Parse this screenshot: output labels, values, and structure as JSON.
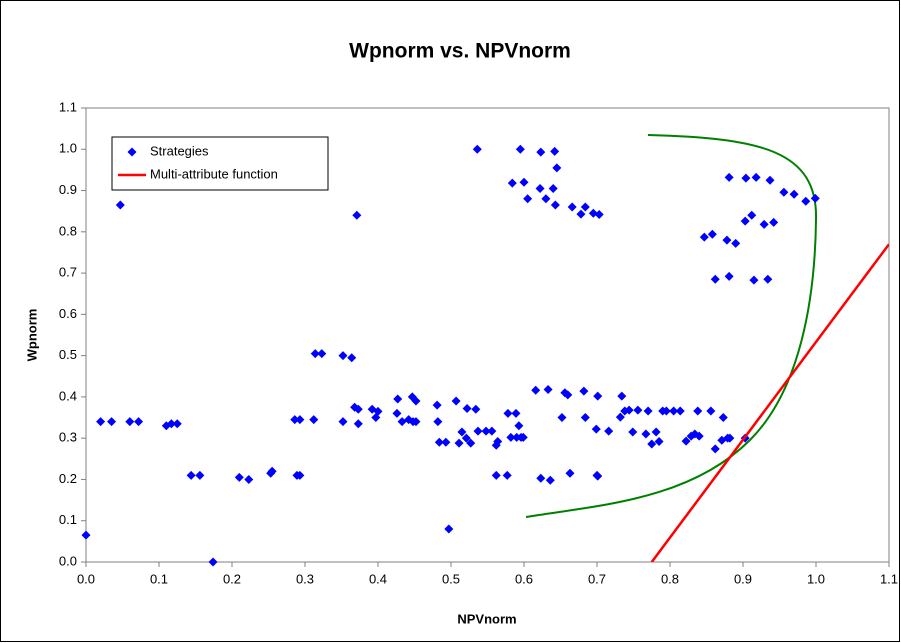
{
  "chart_data": {
    "type": "scatter",
    "title": "Wpnorm vs. NPVnorm",
    "x_label": "NPVnorm",
    "y_label": "Wpnorm",
    "xlim": [
      0,
      1.1
    ],
    "ylim": [
      0,
      1.1
    ],
    "xticks": [
      {
        "value": 0,
        "label": "0.0"
      },
      0.1,
      0.2,
      0.3,
      0.4,
      0.5,
      0.6,
      0.7,
      0.8,
      0.9,
      {
        "value": 1,
        "label": "1.0"
      },
      1.1
    ],
    "yticks": [
      {
        "value": 0,
        "label": "0.0"
      },
      0.1,
      0.2,
      0.3,
      0.4,
      0.5,
      0.6,
      0.7,
      0.8,
      0.9,
      {
        "value": 1,
        "label": "1.0"
      },
      1.1
    ],
    "grid": false,
    "series": [
      {
        "name": "Strategies",
        "color": "#0000ff",
        "marker": "diamond",
        "x": [
          0,
          0.02,
          0.035,
          0.06,
          0.072,
          0.047,
          0.11,
          0.117,
          0.125,
          0.144,
          0.156,
          0.174,
          0.21,
          0.223,
          0.253,
          0.255,
          0.286,
          0.293,
          0.289,
          0.293,
          0.312,
          0.314,
          0.323,
          0.352,
          0.352,
          0.364,
          0.371,
          0.368,
          0.373,
          0.373,
          0.392,
          0.397,
          0.4,
          0.426,
          0.427,
          0.433,
          0.442,
          0.448,
          0.447,
          0.452,
          0.452,
          0.482,
          0.481,
          0.484,
          0.493,
          0.497,
          0.507,
          0.515,
          0.511,
          0.521,
          0.522,
          0.527,
          0.534,
          0.537,
          0.548,
          0.536,
          0.556,
          0.562,
          0.564,
          0.562,
          0.577,
          0.578,
          0.589,
          0.582,
          0.59,
          0.596,
          0.599,
          0.593,
          0.584,
          0.6,
          0.605,
          0.595,
          0.623,
          0.642,
          0.616,
          0.633,
          0.622,
          0.63,
          0.64,
          0.643,
          0.645,
          0.623,
          0.636,
          0.652,
          0.656,
          0.66,
          0.666,
          0.678,
          0.684,
          0.695,
          0.703,
          0.663,
          0.7,
          0.701,
          0.682,
          0.684,
          0.699,
          0.701,
          0.716,
          0.732,
          0.734,
          0.738,
          0.744,
          0.749,
          0.756,
          0.767,
          0.77,
          0.775,
          0.781,
          0.785,
          0.79,
          0.795,
          0.805,
          0.814,
          0.822,
          0.829,
          0.834,
          0.838,
          0.84,
          0.856,
          0.862,
          0.871,
          0.873,
          0.879,
          0.882,
          0.903,
          0.847,
          0.858,
          0.862,
          0.878,
          0.881,
          0.881,
          0.89,
          0.903,
          0.904,
          0.912,
          0.915,
          0.918,
          0.929,
          0.934,
          0.942,
          0.937,
          0.956,
          0.97,
          0.986,
          0.999
        ],
        "values": [
          0.065,
          0.34,
          0.34,
          0.34,
          0.34,
          0.865,
          0.33,
          0.335,
          0.335,
          0.21,
          0.21,
          0.0,
          0.205,
          0.2,
          0.215,
          0.22,
          0.345,
          0.345,
          0.21,
          0.21,
          0.345,
          0.505,
          0.505,
          0.34,
          0.5,
          0.495,
          0.84,
          0.375,
          0.37,
          0.335,
          0.37,
          0.35,
          0.365,
          0.36,
          0.395,
          0.34,
          0.345,
          0.34,
          0.4,
          0.39,
          0.34,
          0.34,
          0.38,
          0.29,
          0.29,
          0.08,
          0.39,
          0.315,
          0.288,
          0.3,
          0.372,
          0.288,
          0.37,
          0.317,
          0.317,
          1.0,
          0.317,
          0.283,
          0.292,
          0.21,
          0.21,
          0.36,
          0.36,
          0.302,
          0.302,
          0.302,
          0.302,
          0.33,
          0.918,
          0.92,
          0.88,
          1.0,
          0.993,
          0.995,
          0.416,
          0.418,
          0.905,
          0.88,
          0.905,
          0.865,
          0.955,
          0.203,
          0.198,
          0.35,
          0.41,
          0.405,
          0.86,
          0.843,
          0.86,
          0.845,
          0.842,
          0.215,
          0.21,
          0.208,
          0.414,
          0.35,
          0.322,
          0.402,
          0.317,
          0.351,
          0.402,
          0.366,
          0.368,
          0.315,
          0.368,
          0.31,
          0.366,
          0.286,
          0.315,
          0.292,
          0.366,
          0.366,
          0.366,
          0.366,
          0.293,
          0.305,
          0.31,
          0.366,
          0.305,
          0.366,
          0.274,
          0.295,
          0.35,
          0.3,
          0.3,
          0.3,
          0.787,
          0.794,
          0.685,
          0.78,
          0.932,
          0.692,
          0.772,
          0.826,
          0.93,
          0.84,
          0.683,
          0.932,
          0.818,
          0.685,
          0.823,
          0.925,
          0.896,
          0.891,
          0.874,
          0.881
        ]
      },
      {
        "name": "Multi-attribute function",
        "color": "#ff0000",
        "marker": "line",
        "x": [
          0.775,
          1.1
        ],
        "values": [
          0,
          0.77
        ]
      }
    ],
    "legend_position": "upper left"
  }
}
